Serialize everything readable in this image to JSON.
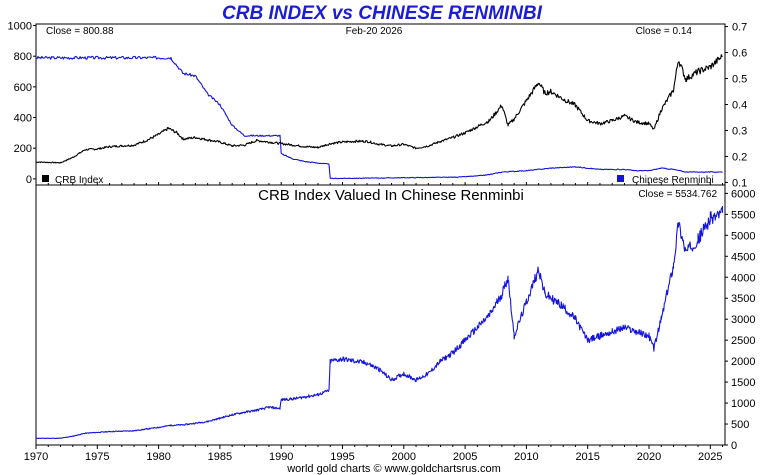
{
  "title": "CRB INDEX vs CHINESE RENMINBI",
  "footer": "world gold charts © www.goldchartsrus.com",
  "colors": {
    "title": "#1c1cd6",
    "crb": "#000000",
    "cny": "#1414dc",
    "axis": "#000000",
    "background": "#ffffff"
  },
  "chart_data": [
    {
      "type": "line",
      "panel": "top",
      "date_label": "Feb-20  2026",
      "close_left": "Close = 800.88",
      "close_right": "Close = 0.14",
      "x_range": [
        1970,
        2026.2
      ],
      "x_ticks": [
        1970,
        1975,
        1980,
        1985,
        1990,
        1995,
        2000,
        2005,
        2010,
        2015,
        2020,
        2025
      ],
      "left_axis": {
        "range": [
          -40,
          1010
        ],
        "ticks": [
          0,
          200,
          400,
          600,
          800,
          1000
        ]
      },
      "right_axis": {
        "range": [
          0.09,
          0.71
        ],
        "ticks": [
          0.1,
          0.2,
          0.3,
          0.4,
          0.5,
          0.6,
          0.7
        ]
      },
      "legend_placement": "bottom",
      "series": [
        {
          "name": "CRB Index",
          "axis": "left",
          "color": "#000000",
          "x": [
            1970,
            1972,
            1973,
            1974,
            1975,
            1976,
            1977,
            1978,
            1979,
            1980,
            1980.8,
            1981.5,
            1982,
            1983,
            1984,
            1985,
            1986,
            1987,
            1988,
            1989,
            1990,
            1991,
            1992,
            1993,
            1994,
            1995,
            1996,
            1997,
            1998,
            1999,
            2000,
            2001,
            2002,
            2003,
            2004,
            2005,
            2006,
            2007,
            2008,
            2008.5,
            2009,
            2010,
            2011,
            2011.5,
            2012,
            2013,
            2014,
            2015,
            2016,
            2017,
            2018,
            2019,
            2020,
            2020.4,
            2021,
            2022,
            2022.4,
            2023,
            2024,
            2025,
            2026
          ],
          "y": [
            110,
            105,
            140,
            190,
            195,
            210,
            215,
            220,
            250,
            290,
            330,
            300,
            260,
            270,
            255,
            240,
            215,
            220,
            250,
            240,
            230,
            220,
            210,
            205,
            230,
            240,
            245,
            245,
            225,
            215,
            225,
            200,
            215,
            245,
            270,
            300,
            340,
            380,
            480,
            350,
            390,
            510,
            630,
            560,
            570,
            520,
            480,
            380,
            360,
            380,
            410,
            370,
            360,
            320,
            450,
            580,
            780,
            650,
            700,
            730,
            800.88
          ]
        },
        {
          "name": "Chinese Renminbi",
          "axis": "right",
          "color": "#1414dc",
          "x": [
            1970,
            1981,
            1982,
            1983,
            1984,
            1985,
            1986,
            1987,
            1989.9,
            1990,
            1991,
            1992,
            1993.9,
            1994,
            2004,
            2005,
            2006,
            2007,
            2008,
            2010,
            2012,
            2014,
            2016,
            2018,
            2019,
            2020,
            2021,
            2022,
            2023,
            2024,
            2025,
            2026
          ],
          "y": [
            0.58,
            0.58,
            0.52,
            0.51,
            0.44,
            0.4,
            0.32,
            0.28,
            0.28,
            0.21,
            0.19,
            0.18,
            0.17,
            0.115,
            0.12,
            0.122,
            0.125,
            0.13,
            0.14,
            0.145,
            0.155,
            0.16,
            0.15,
            0.15,
            0.145,
            0.145,
            0.155,
            0.15,
            0.14,
            0.14,
            0.14,
            0.14
          ]
        }
      ]
    },
    {
      "type": "line",
      "panel": "bottom",
      "title": "CRB Index Valued In Chinese Renminbi",
      "close": "Close = 5534.762",
      "x_range": [
        1970,
        2026.2
      ],
      "y_range": [
        0,
        6200
      ],
      "y_ticks": [
        0,
        500,
        1000,
        1500,
        2000,
        2500,
        3000,
        3500,
        4000,
        4500,
        5000,
        5500,
        6000
      ],
      "x_ticks": [
        1970,
        1975,
        1980,
        1985,
        1990,
        1995,
        2000,
        2005,
        2010,
        2015,
        2020,
        2025
      ],
      "series": [
        {
          "color": "#1414dc",
          "x": [
            1970,
            1972,
            1973,
            1974,
            1975,
            1976,
            1977,
            1978,
            1979,
            1980,
            1981,
            1982,
            1983,
            1984,
            1985,
            1986,
            1987,
            1988,
            1989,
            1989.9,
            1990,
            1991,
            1992,
            1993,
            1993.9,
            1994,
            1995,
            1996,
            1997,
            1998,
            1999,
            2000,
            2001,
            2002,
            2003,
            2004,
            2005,
            2006,
            2007,
            2008,
            2008.5,
            2009,
            2010,
            2011,
            2011.5,
            2012,
            2013,
            2014,
            2015,
            2016,
            2017,
            2018,
            2019,
            2020,
            2020.4,
            2021,
            2022,
            2022.4,
            2023,
            2024,
            2025,
            2026
          ],
          "y": [
            160,
            160,
            210,
            280,
            300,
            320,
            330,
            340,
            380,
            420,
            470,
            480,
            520,
            560,
            640,
            720,
            780,
            830,
            900,
            870,
            1080,
            1100,
            1150,
            1200,
            1300,
            2000,
            2050,
            2000,
            1950,
            1800,
            1550,
            1700,
            1550,
            1700,
            2000,
            2200,
            2500,
            2800,
            3100,
            3600,
            4000,
            2600,
            3400,
            4200,
            3600,
            3500,
            3300,
            3000,
            2500,
            2600,
            2700,
            2800,
            2700,
            2600,
            2300,
            3000,
            4300,
            5300,
            4600,
            4900,
            5400,
            5534.762
          ]
        }
      ]
    }
  ]
}
